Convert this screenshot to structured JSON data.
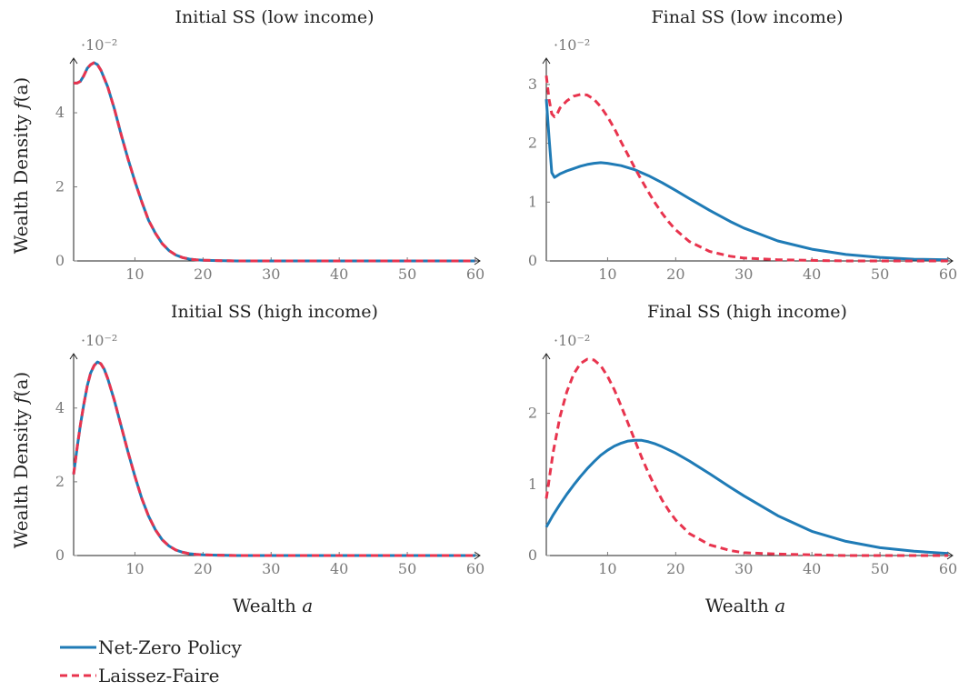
{
  "colors": {
    "net_zero": "#1f7bb6",
    "laissez_faire": "#e8344e",
    "axis": "#222222",
    "tick": "#7a7a7a"
  },
  "shared": {
    "ylabel_top": "Wealth Density",
    "ylabel_top_math": "f",
    "ylabel_top_paren": "(a)",
    "xlabel": "Wealth",
    "xlabel_math": "a"
  },
  "legend": [
    {
      "label": "Net-Zero Policy",
      "color": "#1f7bb6",
      "style": "solid"
    },
    {
      "label": "Laissez-Faire",
      "color": "#e8344e",
      "style": "dashed"
    }
  ],
  "chart_data": [
    {
      "type": "line",
      "title": "Initial SS (low income)",
      "y_scale_label": "·10⁻²",
      "xlim": [
        1,
        60
      ],
      "ylim": [
        0,
        5.4
      ],
      "x_ticks": [
        10,
        20,
        30,
        40,
        50,
        60
      ],
      "y_ticks": [
        0,
        2,
        4
      ],
      "series": [
        {
          "name": "Net-Zero Policy",
          "x": [
            1,
            1.5,
            2,
            2.5,
            3,
            3.5,
            4,
            4.5,
            5,
            6,
            7,
            8,
            9,
            10,
            11,
            12,
            13,
            14,
            15,
            16,
            17,
            18,
            19,
            20,
            22,
            25,
            30,
            35,
            40,
            45,
            50,
            55,
            60
          ],
          "y": [
            4.8,
            4.8,
            4.85,
            5.0,
            5.2,
            5.3,
            5.35,
            5.3,
            5.15,
            4.7,
            4.1,
            3.4,
            2.75,
            2.15,
            1.6,
            1.1,
            0.75,
            0.47,
            0.28,
            0.16,
            0.09,
            0.05,
            0.03,
            0.02,
            0.01,
            0.0,
            0.0,
            0.0,
            0.0,
            0.0,
            0.0,
            0.0,
            0.0
          ]
        },
        {
          "name": "Laissez-Faire",
          "x": [
            1,
            1.5,
            2,
            2.5,
            3,
            3.5,
            4,
            4.5,
            5,
            6,
            7,
            8,
            9,
            10,
            11,
            12,
            13,
            14,
            15,
            16,
            17,
            18,
            19,
            20,
            22,
            25,
            30,
            35,
            40,
            45,
            50,
            55,
            60
          ],
          "y": [
            4.8,
            4.8,
            4.85,
            5.0,
            5.2,
            5.3,
            5.35,
            5.3,
            5.15,
            4.7,
            4.1,
            3.4,
            2.75,
            2.15,
            1.6,
            1.1,
            0.75,
            0.47,
            0.28,
            0.16,
            0.09,
            0.05,
            0.03,
            0.02,
            0.01,
            0.0,
            0.0,
            0.0,
            0.0,
            0.0,
            0.0,
            0.0,
            0.0
          ]
        }
      ]
    },
    {
      "type": "line",
      "title": "Final SS (low income)",
      "y_scale_label": "·10⁻²",
      "xlim": [
        1,
        60
      ],
      "ylim": [
        0,
        3.4
      ],
      "x_ticks": [
        10,
        20,
        30,
        40,
        50,
        60
      ],
      "y_ticks": [
        0,
        1,
        2,
        3
      ],
      "series": [
        {
          "name": "Net-Zero Policy",
          "x": [
            1,
            1.4,
            1.8,
            2.2,
            2.6,
            3,
            4,
            5,
            6,
            7,
            8,
            9,
            10,
            12,
            14,
            16,
            18,
            20,
            22,
            25,
            28,
            30,
            35,
            40,
            45,
            50,
            55,
            60
          ],
          "y": [
            2.75,
            2.1,
            1.5,
            1.42,
            1.45,
            1.48,
            1.53,
            1.57,
            1.61,
            1.64,
            1.66,
            1.67,
            1.66,
            1.62,
            1.55,
            1.45,
            1.33,
            1.2,
            1.06,
            0.86,
            0.67,
            0.56,
            0.34,
            0.2,
            0.11,
            0.06,
            0.03,
            0.02
          ]
        },
        {
          "name": "Laissez-Faire",
          "x": [
            1,
            1.4,
            1.8,
            2.2,
            2.6,
            3,
            4,
            5,
            6,
            7,
            8,
            9,
            10,
            11,
            12,
            13,
            14,
            15,
            16,
            17,
            18,
            19,
            20,
            22,
            25,
            28,
            30,
            35,
            40,
            45,
            50,
            55,
            60
          ],
          "y": [
            3.15,
            2.75,
            2.5,
            2.45,
            2.5,
            2.6,
            2.72,
            2.8,
            2.83,
            2.82,
            2.75,
            2.62,
            2.45,
            2.25,
            2.02,
            1.8,
            1.58,
            1.37,
            1.17,
            0.98,
            0.81,
            0.66,
            0.53,
            0.33,
            0.16,
            0.08,
            0.05,
            0.02,
            0.01,
            0.0,
            0.0,
            0.0,
            0.0
          ]
        }
      ]
    },
    {
      "type": "line",
      "title": "Initial SS (high income)",
      "y_scale_label": "·10⁻²",
      "xlim": [
        1,
        60
      ],
      "ylim": [
        0,
        5.4
      ],
      "x_ticks": [
        10,
        20,
        30,
        40,
        50,
        60
      ],
      "y_ticks": [
        0,
        2,
        4
      ],
      "series": [
        {
          "name": "Net-Zero Policy",
          "x": [
            1,
            1.5,
            2,
            2.5,
            3,
            3.5,
            4,
            4.5,
            5,
            5.5,
            6,
            7,
            8,
            9,
            10,
            11,
            12,
            13,
            14,
            15,
            16,
            17,
            18,
            19,
            20,
            22,
            25,
            30,
            35,
            40,
            45,
            50,
            55,
            60
          ],
          "y": [
            2.2,
            2.9,
            3.55,
            4.1,
            4.6,
            4.95,
            5.15,
            5.25,
            5.2,
            5.05,
            4.8,
            4.2,
            3.5,
            2.8,
            2.15,
            1.55,
            1.07,
            0.7,
            0.43,
            0.26,
            0.15,
            0.09,
            0.05,
            0.03,
            0.02,
            0.01,
            0.0,
            0.0,
            0.0,
            0.0,
            0.0,
            0.0,
            0.0,
            0.0
          ]
        },
        {
          "name": "Laissez-Faire",
          "x": [
            1,
            1.5,
            2,
            2.5,
            3,
            3.5,
            4,
            4.5,
            5,
            5.5,
            6,
            7,
            8,
            9,
            10,
            11,
            12,
            13,
            14,
            15,
            16,
            17,
            18,
            19,
            20,
            22,
            25,
            30,
            35,
            40,
            45,
            50,
            55,
            60
          ],
          "y": [
            2.2,
            2.9,
            3.55,
            4.1,
            4.6,
            4.95,
            5.15,
            5.25,
            5.2,
            5.05,
            4.8,
            4.2,
            3.5,
            2.8,
            2.15,
            1.55,
            1.07,
            0.7,
            0.43,
            0.26,
            0.15,
            0.09,
            0.05,
            0.03,
            0.02,
            0.01,
            0.0,
            0.0,
            0.0,
            0.0,
            0.0,
            0.0,
            0.0,
            0.0
          ]
        }
      ]
    },
    {
      "type": "line",
      "title": "Final SS (high income)",
      "y_scale_label": "·10⁻²",
      "xlim": [
        1,
        60
      ],
      "ylim": [
        0,
        2.8
      ],
      "x_ticks": [
        10,
        20,
        30,
        40,
        50,
        60
      ],
      "y_ticks": [
        0,
        1,
        2
      ],
      "series": [
        {
          "name": "Net-Zero Policy",
          "x": [
            1,
            2,
            3,
            4,
            5,
            6,
            7,
            8,
            9,
            10,
            11,
            12,
            13,
            14,
            15,
            16,
            17,
            18,
            20,
            22,
            25,
            28,
            30,
            35,
            40,
            45,
            50,
            55,
            60
          ],
          "y": [
            0.4,
            0.57,
            0.72,
            0.86,
            0.99,
            1.11,
            1.22,
            1.32,
            1.41,
            1.48,
            1.54,
            1.58,
            1.61,
            1.62,
            1.62,
            1.6,
            1.57,
            1.53,
            1.44,
            1.33,
            1.15,
            0.96,
            0.84,
            0.56,
            0.34,
            0.2,
            0.11,
            0.06,
            0.03
          ]
        },
        {
          "name": "Laissez-Faire",
          "x": [
            1,
            2,
            3,
            4,
            5,
            6,
            7,
            8,
            9,
            10,
            11,
            12,
            13,
            14,
            15,
            16,
            17,
            18,
            19,
            20,
            22,
            25,
            28,
            30,
            35,
            40,
            45,
            50,
            55,
            60
          ],
          "y": [
            0.8,
            1.45,
            1.95,
            2.3,
            2.55,
            2.7,
            2.76,
            2.75,
            2.67,
            2.52,
            2.33,
            2.1,
            1.86,
            1.62,
            1.38,
            1.16,
            0.96,
            0.78,
            0.63,
            0.5,
            0.31,
            0.15,
            0.07,
            0.04,
            0.02,
            0.01,
            0.0,
            0.0,
            0.0,
            0.0
          ]
        }
      ]
    }
  ]
}
